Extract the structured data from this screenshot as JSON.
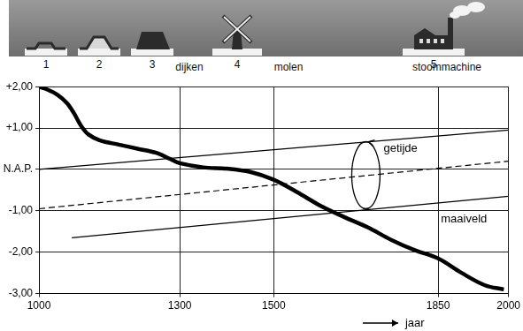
{
  "illustration": {
    "items": [
      "1",
      "2",
      "3",
      "4",
      "5"
    ],
    "captions": [
      "dijken",
      "molen",
      "stoommachine"
    ]
  },
  "chart_data": {
    "type": "line",
    "x_label": "jaar",
    "xlim": [
      1000,
      2000
    ],
    "xticks": [
      1000,
      1300,
      1500,
      1850,
      2000
    ],
    "ylim": [
      -3,
      2
    ],
    "yticks": [
      {
        "value": 2,
        "label": "+2,00"
      },
      {
        "value": 1,
        "label": "+1,00"
      },
      {
        "value": 0,
        "label": "N.A.P."
      },
      {
        "value": -1,
        "label": "-1,00"
      },
      {
        "value": -2,
        "label": "-2,00"
      },
      {
        "value": -3,
        "label": "-3,00"
      }
    ],
    "grid": true,
    "series": [
      {
        "color": "#000000",
        "line_style": "solid",
        "x": [
          1000,
          1020,
          1040,
          1060,
          1075,
          1090,
          1105,
          1130,
          1170,
          1210,
          1250,
          1280,
          1300,
          1350,
          1400,
          1450,
          1500,
          1550,
          1600,
          1650,
          1700,
          1750,
          1800,
          1850,
          1900,
          1950,
          1990
        ],
        "values": [
          2.0,
          1.92,
          1.8,
          1.6,
          1.35,
          1.05,
          0.85,
          0.7,
          0.6,
          0.5,
          0.4,
          0.25,
          0.15,
          0.05,
          0.02,
          -0.06,
          -0.25,
          -0.55,
          -0.88,
          -1.15,
          -1.4,
          -1.7,
          -1.95,
          -2.15,
          -2.5,
          -2.8,
          -2.9
        ]
      },
      {
        "color": "#000000",
        "line_style": "solid",
        "x": [
          1000,
          2000
        ],
        "values": [
          0.0,
          0.95
        ]
      },
      {
        "color": "#000000",
        "line_style": "dashed",
        "x": [
          1000,
          2000
        ],
        "values": [
          -0.95,
          0.2
        ]
      },
      {
        "color": "#000000",
        "line_style": "solid",
        "x": [
          1070,
          2000
        ],
        "values": [
          -1.65,
          -0.65
        ]
      }
    ],
    "annotations": [
      {
        "text": "getijde",
        "x": 1770,
        "y": 0.5
      },
      {
        "text": "maaiveld",
        "x": 1905,
        "y": -1.2
      }
    ]
  }
}
